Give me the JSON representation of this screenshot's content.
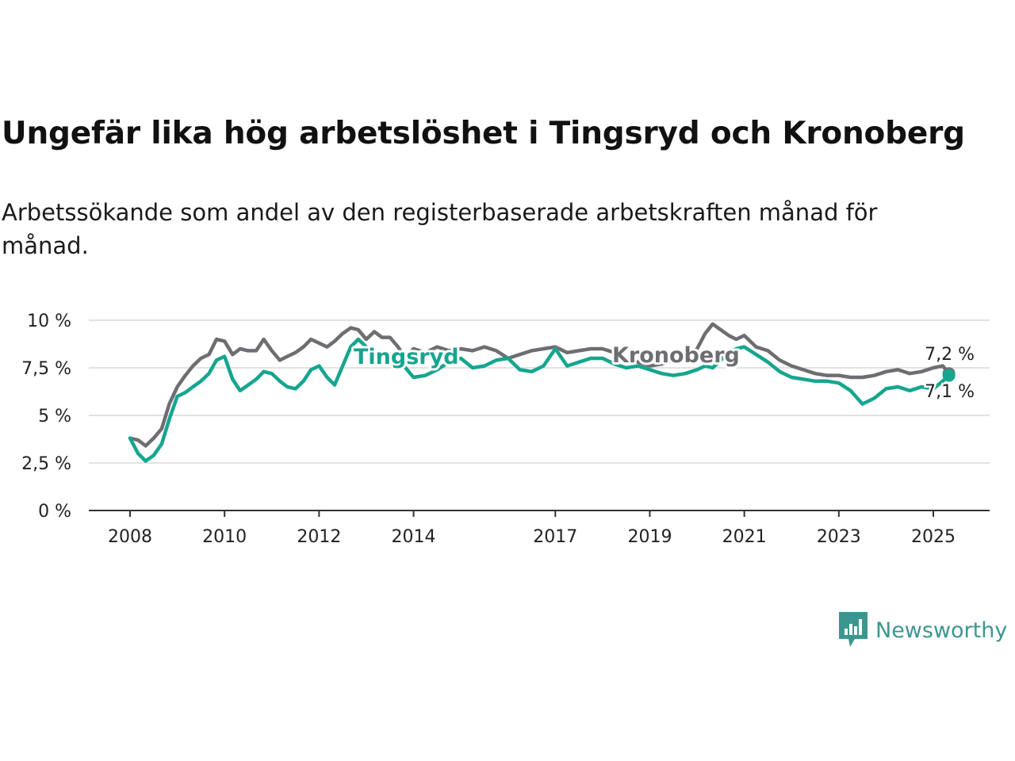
{
  "title": "Ungefär lika hög arbetslöshet i Tingsryd och Kronoberg",
  "subtitle": "Arbetssökande som andel av den registerbaserade arbetskraften månad för månad.",
  "brand": {
    "name": "Newsworthy",
    "icon": "newsworthy-bar-chart-logo-icon"
  },
  "chart_data": {
    "type": "line",
    "xlabel": "",
    "ylabel": "",
    "ylim": [
      0,
      10
    ],
    "xlim": [
      2008,
      2025.6
    ],
    "grid": true,
    "y_ticks": [
      {
        "value": 0,
        "label": "0 %"
      },
      {
        "value": 2.5,
        "label": "2,5 %"
      },
      {
        "value": 5,
        "label": "5 %"
      },
      {
        "value": 7.5,
        "label": "7,5 %"
      },
      {
        "value": 10,
        "label": "10 %"
      }
    ],
    "x_ticks": [
      {
        "value": 2008,
        "label": "2008"
      },
      {
        "value": 2010,
        "label": "2010"
      },
      {
        "value": 2012,
        "label": "2012"
      },
      {
        "value": 2014,
        "label": "2014"
      },
      {
        "value": 2017,
        "label": "2017"
      },
      {
        "value": 2019,
        "label": "2019"
      },
      {
        "value": 2021,
        "label": "2021"
      },
      {
        "value": 2023,
        "label": "2023"
      },
      {
        "value": 2025,
        "label": "2025"
      }
    ],
    "series": [
      {
        "name": "Kronoberg",
        "color": "#6e6e72",
        "end_label": "7,2 %",
        "x": [
          2008.0,
          2008.17,
          2008.33,
          2008.5,
          2008.67,
          2008.83,
          2009.0,
          2009.17,
          2009.33,
          2009.5,
          2009.67,
          2009.83,
          2010.0,
          2010.17,
          2010.33,
          2010.5,
          2010.67,
          2010.83,
          2011.0,
          2011.17,
          2011.33,
          2011.5,
          2011.67,
          2011.83,
          2012.0,
          2012.17,
          2012.33,
          2012.5,
          2012.67,
          2012.83,
          2013.0,
          2013.17,
          2013.33,
          2013.5,
          2013.67,
          2013.83,
          2014.0,
          2014.25,
          2014.5,
          2014.75,
          2015.0,
          2015.25,
          2015.5,
          2015.75,
          2016.0,
          2016.25,
          2016.5,
          2016.75,
          2017.0,
          2017.25,
          2017.5,
          2017.75,
          2018.0,
          2018.25,
          2018.5,
          2018.75,
          2019.0,
          2019.25,
          2019.5,
          2019.75,
          2020.0,
          2020.17,
          2020.33,
          2020.5,
          2020.67,
          2020.83,
          2021.0,
          2021.25,
          2021.5,
          2021.75,
          2022.0,
          2022.25,
          2022.5,
          2022.75,
          2023.0,
          2023.25,
          2023.5,
          2023.75,
          2024.0,
          2024.25,
          2024.5,
          2024.75,
          2025.0,
          2025.2,
          2025.33
        ],
        "values": [
          3.8,
          3.7,
          3.4,
          3.8,
          4.3,
          5.6,
          6.5,
          7.1,
          7.6,
          8.0,
          8.2,
          9.0,
          8.9,
          8.2,
          8.5,
          8.4,
          8.4,
          9.0,
          8.4,
          7.9,
          8.1,
          8.3,
          8.6,
          9.0,
          8.8,
          8.6,
          8.9,
          9.3,
          9.6,
          9.5,
          9.0,
          9.4,
          9.1,
          9.1,
          8.6,
          8.0,
          8.5,
          8.3,
          8.6,
          8.4,
          8.5,
          8.4,
          8.6,
          8.4,
          8.0,
          8.2,
          8.4,
          8.5,
          8.6,
          8.3,
          8.4,
          8.5,
          8.5,
          8.3,
          7.9,
          7.8,
          7.6,
          7.7,
          7.9,
          8.1,
          8.5,
          9.3,
          9.8,
          9.5,
          9.2,
          9.0,
          9.2,
          8.6,
          8.4,
          7.9,
          7.6,
          7.4,
          7.2,
          7.1,
          7.1,
          7.0,
          7.0,
          7.1,
          7.3,
          7.4,
          7.2,
          7.3,
          7.5,
          7.6,
          7.2
        ]
      },
      {
        "name": "Tingsryd",
        "color": "#16a58f",
        "end_label": "7,1 %",
        "x": [
          2008.0,
          2008.17,
          2008.33,
          2008.5,
          2008.67,
          2008.83,
          2009.0,
          2009.17,
          2009.33,
          2009.5,
          2009.67,
          2009.83,
          2010.0,
          2010.17,
          2010.33,
          2010.5,
          2010.67,
          2010.83,
          2011.0,
          2011.17,
          2011.33,
          2011.5,
          2011.67,
          2011.83,
          2012.0,
          2012.17,
          2012.33,
          2012.5,
          2012.67,
          2012.83,
          2013.0,
          2013.17,
          2013.33,
          2013.5,
          2013.67,
          2013.83,
          2014.0,
          2014.25,
          2014.5,
          2014.75,
          2015.0,
          2015.25,
          2015.5,
          2015.75,
          2016.0,
          2016.25,
          2016.5,
          2016.75,
          2017.0,
          2017.25,
          2017.5,
          2017.75,
          2018.0,
          2018.25,
          2018.5,
          2018.75,
          2019.0,
          2019.25,
          2019.5,
          2019.75,
          2020.0,
          2020.17,
          2020.33,
          2020.5,
          2020.67,
          2020.83,
          2021.0,
          2021.25,
          2021.5,
          2021.75,
          2022.0,
          2022.25,
          2022.5,
          2022.75,
          2023.0,
          2023.25,
          2023.5,
          2023.75,
          2024.0,
          2024.25,
          2024.5,
          2024.75,
          2025.0,
          2025.2,
          2025.33
        ],
        "values": [
          3.8,
          3.0,
          2.6,
          2.9,
          3.5,
          4.8,
          6.0,
          6.2,
          6.5,
          6.8,
          7.2,
          7.9,
          8.1,
          6.9,
          6.3,
          6.6,
          6.9,
          7.3,
          7.2,
          6.8,
          6.5,
          6.4,
          6.8,
          7.4,
          7.6,
          7.0,
          6.6,
          7.6,
          8.6,
          9.0,
          8.6,
          8.1,
          7.8,
          7.7,
          7.9,
          7.5,
          7.0,
          7.1,
          7.4,
          7.8,
          8.0,
          7.5,
          7.6,
          7.9,
          8.0,
          7.4,
          7.3,
          7.6,
          8.5,
          7.6,
          7.8,
          8.0,
          8.0,
          7.7,
          7.5,
          7.6,
          7.4,
          7.2,
          7.1,
          7.2,
          7.4,
          7.6,
          7.5,
          7.9,
          8.3,
          8.5,
          8.6,
          8.2,
          7.8,
          7.3,
          7.0,
          6.9,
          6.8,
          6.8,
          6.7,
          6.3,
          5.6,
          5.9,
          6.4,
          6.5,
          6.3,
          6.5,
          6.4,
          6.8,
          7.1
        ]
      }
    ]
  }
}
